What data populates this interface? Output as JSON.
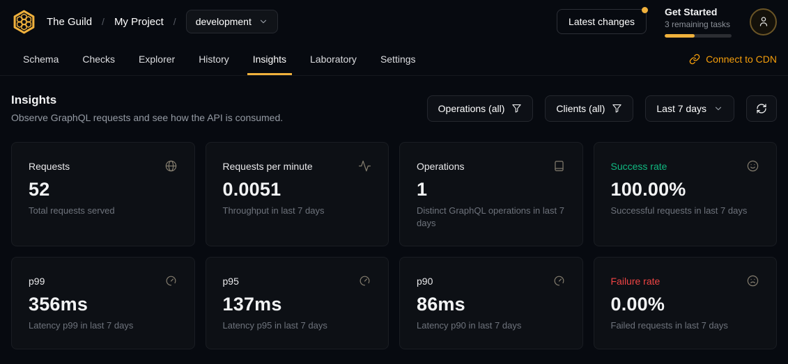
{
  "header": {
    "org": "The Guild",
    "separator": "/",
    "project": "My Project",
    "target_selector": {
      "value": "development"
    },
    "latest_changes_label": "Latest changes",
    "get_started": {
      "title": "Get Started",
      "subtitle": "3 remaining tasks",
      "progress_percent": 45
    },
    "avatar_icon": "user-icon"
  },
  "nav": {
    "tabs": [
      {
        "label": "Schema"
      },
      {
        "label": "Checks"
      },
      {
        "label": "Explorer"
      },
      {
        "label": "History"
      },
      {
        "label": "Insights"
      },
      {
        "label": "Laboratory"
      },
      {
        "label": "Settings"
      }
    ],
    "active_tab": "Insights",
    "cdn_link_label": "Connect to CDN",
    "cdn_link_icon": "link-icon"
  },
  "page_header": {
    "title": "Insights",
    "subtitle": "Observe GraphQL requests and see how the API is consumed."
  },
  "filters": {
    "operations_label": "Operations (all)",
    "clients_label": "Clients (all)",
    "range_label": "Last 7 days",
    "refresh_icon": "refresh-icon",
    "filter_icon": "funnel-icon",
    "chevron_icon": "chevron-down-icon"
  },
  "stats": [
    {
      "title": "Requests",
      "value": "52",
      "subtitle": "Total requests served",
      "icon": "globe-icon"
    },
    {
      "title": "Requests per minute",
      "value": "0.0051",
      "subtitle": "Throughput in last 7 days",
      "icon": "activity-icon"
    },
    {
      "title": "Operations",
      "value": "1",
      "subtitle": "Distinct GraphQL operations in last 7 days",
      "icon": "book-icon"
    },
    {
      "title": "Success rate",
      "value": "100.00%",
      "subtitle": "Successful requests in last 7 days",
      "icon": "smile-icon",
      "color": "#10b981"
    },
    {
      "title": "p99",
      "value": "356ms",
      "subtitle": "Latency p99 in last 7 days",
      "icon": "gauge-icon"
    },
    {
      "title": "p95",
      "value": "137ms",
      "subtitle": "Latency p95 in last 7 days",
      "icon": "gauge-icon"
    },
    {
      "title": "p90",
      "value": "86ms",
      "subtitle": "Latency p90 in last 7 days",
      "icon": "gauge-icon"
    },
    {
      "title": "Failure rate",
      "value": "0.00%",
      "subtitle": "Failed requests in last 7 days",
      "icon": "frown-icon",
      "color": "#ef4444"
    }
  ],
  "colors": {
    "accent": "#f0b13c",
    "link": "#f59e0b",
    "success": "#10b981",
    "danger": "#ef4444"
  }
}
